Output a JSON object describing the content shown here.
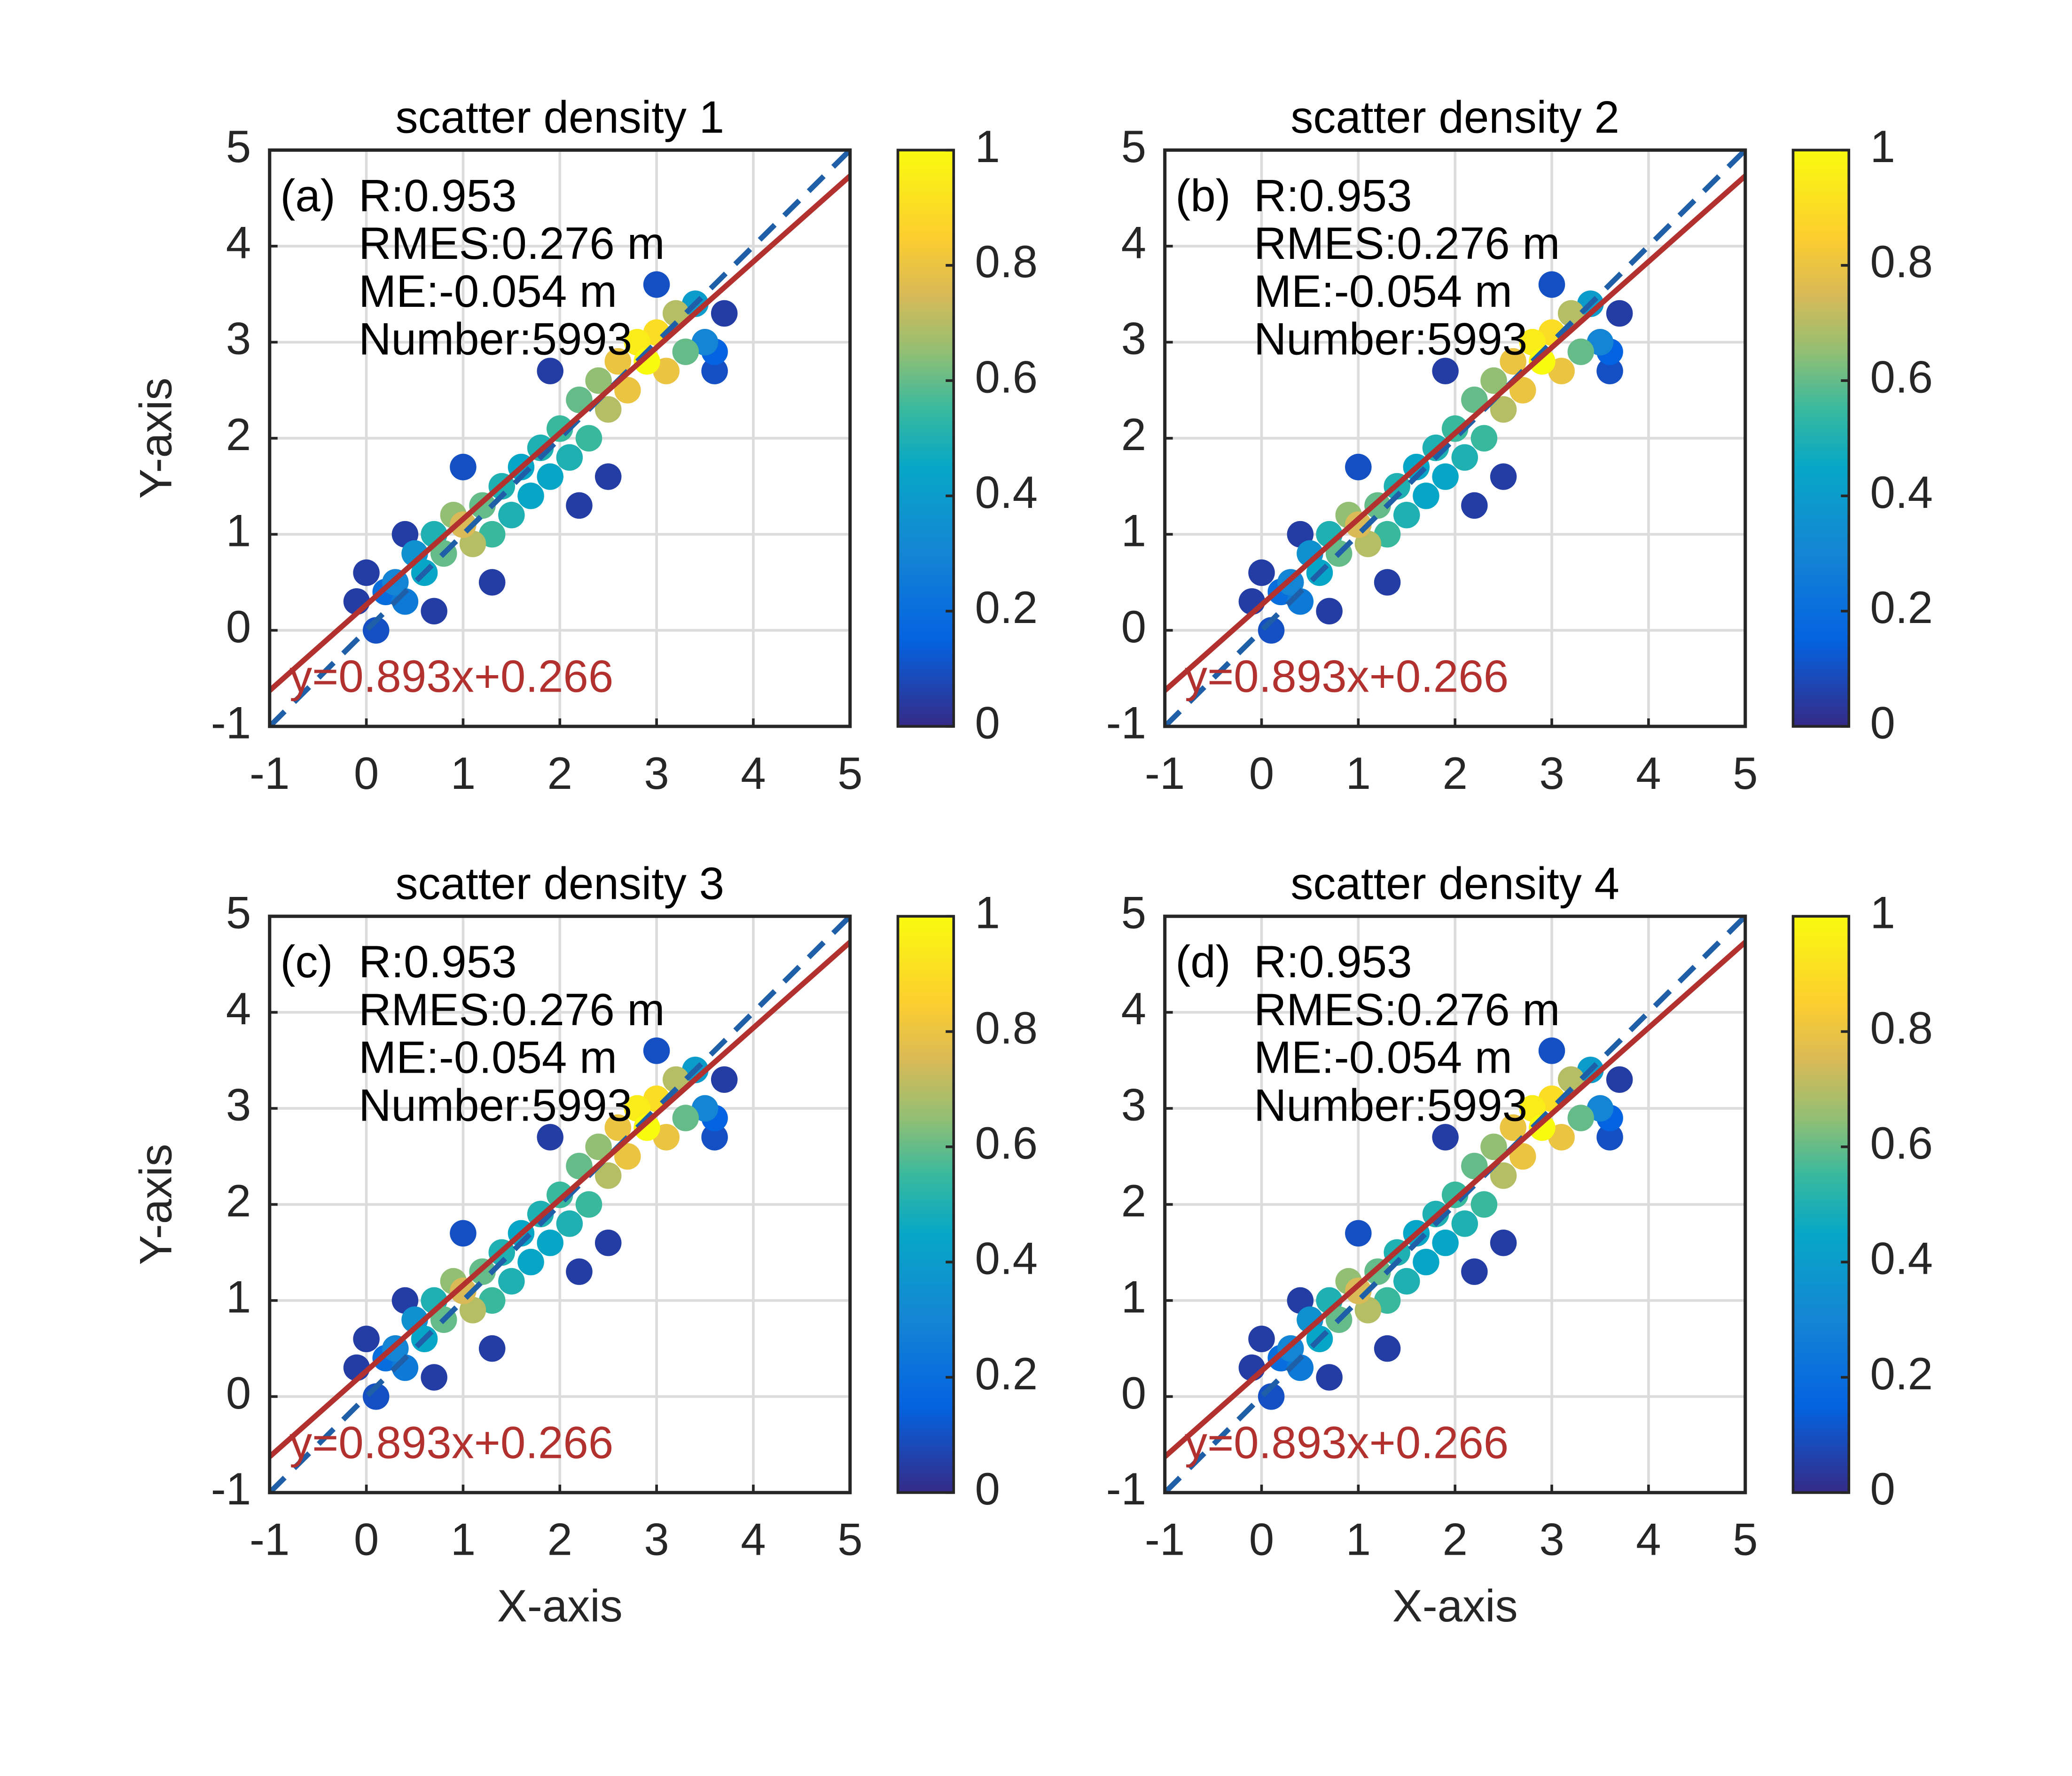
{
  "chart_data": [
    {
      "type": "scatter",
      "title": "scatter density 1",
      "ylabel": "Y-axis",
      "panel_label": "(a)",
      "stats": [
        "R:0.953",
        "RMES:0.276 m",
        "ME:-0.054 m",
        "Number:5993"
      ],
      "fit": {
        "label": "y=0.893x+0.266",
        "slope": 0.893,
        "intercept": 0.266,
        "color": "#b2312e"
      },
      "reference_line": {
        "slope": 1,
        "intercept": 0,
        "color": "#1f5fa8",
        "dashed": true
      },
      "xlim": [
        -1,
        5
      ],
      "ylim": [
        -1,
        5
      ],
      "xticks": [
        -1,
        0,
        1,
        2,
        3,
        4,
        5
      ],
      "yticks": [
        -1,
        0,
        1,
        2,
        3,
        4,
        5
      ],
      "grid": true,
      "colormap": "parula",
      "clim": [
        0,
        1
      ],
      "cticks": [
        0,
        0.2,
        0.4,
        0.6,
        0.8,
        1
      ],
      "series": [
        {
          "x": [
            2.5,
            1.3,
            0.7,
            1.9,
            0.4,
            2.2,
            3.7,
            -0.1,
            0.0,
            3.6,
            0.1,
            1.0,
            3.0,
            3.6,
            0.2,
            0.4,
            3.5,
            0.3,
            0.5,
            3.4,
            0.6,
            1.6,
            1.7,
            1.9,
            1.4,
            1.5,
            0.7,
            2.1,
            1.3,
            1.8,
            2.0,
            0.8,
            1.2,
            3.3,
            2.2,
            2.3,
            0.9,
            2.4,
            1.1,
            3.2,
            2.5,
            1.0,
            2.6,
            2.7,
            3.1,
            3.0,
            2.8,
            2.9
          ],
          "y": [
            1.6,
            0.5,
            0.2,
            2.7,
            1.0,
            1.3,
            3.3,
            0.3,
            0.6,
            2.7,
            0.0,
            1.7,
            3.6,
            2.9,
            0.4,
            0.3,
            3.0,
            0.5,
            0.8,
            3.4,
            0.6,
            1.7,
            1.4,
            1.6,
            1.5,
            1.2,
            1.0,
            1.8,
            1.0,
            1.9,
            2.1,
            0.8,
            1.3,
            2.9,
            2.4,
            2.0,
            1.2,
            2.6,
            0.9,
            3.3,
            2.3,
            1.1,
            2.8,
            2.5,
            2.7,
            3.1,
            3.0,
            2.8
          ],
          "values": [
            0.05,
            0.05,
            0.05,
            0.05,
            0.05,
            0.05,
            0.05,
            0.05,
            0.05,
            0.1,
            0.1,
            0.1,
            0.1,
            0.15,
            0.2,
            0.25,
            0.3,
            0.3,
            0.35,
            0.4,
            0.45,
            0.45,
            0.45,
            0.45,
            0.5,
            0.5,
            0.5,
            0.5,
            0.55,
            0.5,
            0.55,
            0.6,
            0.6,
            0.6,
            0.6,
            0.55,
            0.65,
            0.65,
            0.7,
            0.7,
            0.7,
            0.75,
            0.8,
            0.8,
            0.8,
            0.9,
            0.95,
            1.0
          ]
        }
      ]
    },
    {
      "type": "scatter",
      "title": "scatter density 2",
      "panel_label": "(b)",
      "stats": [
        "R:0.953",
        "RMES:0.276 m",
        "ME:-0.054 m",
        "Number:5993"
      ],
      "fit": {
        "label": "y=0.893x+0.266",
        "slope": 0.893,
        "intercept": 0.266,
        "color": "#b2312e"
      },
      "reference_line": {
        "slope": 1,
        "intercept": 0,
        "color": "#1f5fa8",
        "dashed": true
      },
      "xlim": [
        -1,
        5
      ],
      "ylim": [
        -1,
        5
      ],
      "xticks": [
        -1,
        0,
        1,
        2,
        3,
        4,
        5
      ],
      "yticks": [
        -1,
        0,
        1,
        2,
        3,
        4,
        5
      ],
      "grid": true,
      "colormap": "parula",
      "clim": [
        0,
        1
      ],
      "cticks": [
        0,
        0.2,
        0.4,
        0.6,
        0.8,
        1
      ],
      "series": [
        {
          "x": [
            2.5,
            1.3,
            0.7,
            1.9,
            0.4,
            2.2,
            3.7,
            -0.1,
            0.0,
            3.6,
            0.1,
            1.0,
            3.0,
            3.6,
            0.2,
            0.4,
            3.5,
            0.3,
            0.5,
            3.4,
            0.6,
            1.6,
            1.7,
            1.9,
            1.4,
            1.5,
            0.7,
            2.1,
            1.3,
            1.8,
            2.0,
            0.8,
            1.2,
            3.3,
            2.2,
            2.3,
            0.9,
            2.4,
            1.1,
            3.2,
            2.5,
            1.0,
            2.6,
            2.7,
            3.1,
            3.0,
            2.8,
            2.9
          ],
          "y": [
            1.6,
            0.5,
            0.2,
            2.7,
            1.0,
            1.3,
            3.3,
            0.3,
            0.6,
            2.7,
            0.0,
            1.7,
            3.6,
            2.9,
            0.4,
            0.3,
            3.0,
            0.5,
            0.8,
            3.4,
            0.6,
            1.7,
            1.4,
            1.6,
            1.5,
            1.2,
            1.0,
            1.8,
            1.0,
            1.9,
            2.1,
            0.8,
            1.3,
            2.9,
            2.4,
            2.0,
            1.2,
            2.6,
            0.9,
            3.3,
            2.3,
            1.1,
            2.8,
            2.5,
            2.7,
            3.1,
            3.0,
            2.8
          ],
          "values": [
            0.05,
            0.05,
            0.05,
            0.05,
            0.05,
            0.05,
            0.05,
            0.05,
            0.05,
            0.1,
            0.1,
            0.1,
            0.1,
            0.15,
            0.2,
            0.25,
            0.3,
            0.3,
            0.35,
            0.4,
            0.45,
            0.45,
            0.45,
            0.45,
            0.5,
            0.5,
            0.5,
            0.5,
            0.55,
            0.5,
            0.55,
            0.6,
            0.6,
            0.6,
            0.6,
            0.55,
            0.65,
            0.65,
            0.7,
            0.7,
            0.7,
            0.75,
            0.8,
            0.8,
            0.8,
            0.9,
            0.95,
            1.0
          ]
        }
      ]
    },
    {
      "type": "scatter",
      "title": "scatter density 3",
      "xlabel": "X-axis",
      "ylabel": "Y-axis",
      "panel_label": "(c)",
      "stats": [
        "R:0.953",
        "RMES:0.276 m",
        "ME:-0.054 m",
        "Number:5993"
      ],
      "fit": {
        "label": "y=0.893x+0.266",
        "slope": 0.893,
        "intercept": 0.266,
        "color": "#b2312e"
      },
      "reference_line": {
        "slope": 1,
        "intercept": 0,
        "color": "#1f5fa8",
        "dashed": true
      },
      "xlim": [
        -1,
        5
      ],
      "ylim": [
        -1,
        5
      ],
      "xticks": [
        -1,
        0,
        1,
        2,
        3,
        4,
        5
      ],
      "yticks": [
        -1,
        0,
        1,
        2,
        3,
        4,
        5
      ],
      "grid": true,
      "colormap": "parula",
      "clim": [
        0,
        1
      ],
      "cticks": [
        0,
        0.2,
        0.4,
        0.6,
        0.8,
        1
      ],
      "series": [
        {
          "x": [
            2.5,
            1.3,
            0.7,
            1.9,
            0.4,
            2.2,
            3.7,
            -0.1,
            0.0,
            3.6,
            0.1,
            1.0,
            3.0,
            3.6,
            0.2,
            0.4,
            3.5,
            0.3,
            0.5,
            3.4,
            0.6,
            1.6,
            1.7,
            1.9,
            1.4,
            1.5,
            0.7,
            2.1,
            1.3,
            1.8,
            2.0,
            0.8,
            1.2,
            3.3,
            2.2,
            2.3,
            0.9,
            2.4,
            1.1,
            3.2,
            2.5,
            1.0,
            2.6,
            2.7,
            3.1,
            3.0,
            2.8,
            2.9
          ],
          "y": [
            1.6,
            0.5,
            0.2,
            2.7,
            1.0,
            1.3,
            3.3,
            0.3,
            0.6,
            2.7,
            0.0,
            1.7,
            3.6,
            2.9,
            0.4,
            0.3,
            3.0,
            0.5,
            0.8,
            3.4,
            0.6,
            1.7,
            1.4,
            1.6,
            1.5,
            1.2,
            1.0,
            1.8,
            1.0,
            1.9,
            2.1,
            0.8,
            1.3,
            2.9,
            2.4,
            2.0,
            1.2,
            2.6,
            0.9,
            3.3,
            2.3,
            1.1,
            2.8,
            2.5,
            2.7,
            3.1,
            3.0,
            2.8
          ],
          "values": [
            0.05,
            0.05,
            0.05,
            0.05,
            0.05,
            0.05,
            0.05,
            0.05,
            0.05,
            0.1,
            0.1,
            0.1,
            0.1,
            0.15,
            0.2,
            0.25,
            0.3,
            0.3,
            0.35,
            0.4,
            0.45,
            0.45,
            0.45,
            0.45,
            0.5,
            0.5,
            0.5,
            0.5,
            0.55,
            0.5,
            0.55,
            0.6,
            0.6,
            0.6,
            0.6,
            0.55,
            0.65,
            0.65,
            0.7,
            0.7,
            0.7,
            0.75,
            0.8,
            0.8,
            0.8,
            0.9,
            0.95,
            1.0
          ]
        }
      ]
    },
    {
      "type": "scatter",
      "title": "scatter density 4",
      "xlabel": "X-axis",
      "panel_label": "(d)",
      "stats": [
        "R:0.953",
        "RMES:0.276 m",
        "ME:-0.054 m",
        "Number:5993"
      ],
      "fit": {
        "label": "y=0.893x+0.266",
        "slope": 0.893,
        "intercept": 0.266,
        "color": "#b2312e"
      },
      "reference_line": {
        "slope": 1,
        "intercept": 0,
        "color": "#1f5fa8",
        "dashed": true
      },
      "xlim": [
        -1,
        5
      ],
      "ylim": [
        -1,
        5
      ],
      "xticks": [
        -1,
        0,
        1,
        2,
        3,
        4,
        5
      ],
      "yticks": [
        -1,
        0,
        1,
        2,
        3,
        4,
        5
      ],
      "grid": true,
      "colormap": "parula",
      "clim": [
        0,
        1
      ],
      "cticks": [
        0,
        0.2,
        0.4,
        0.6,
        0.8,
        1
      ],
      "series": [
        {
          "x": [
            2.5,
            1.3,
            0.7,
            1.9,
            0.4,
            2.2,
            3.7,
            -0.1,
            0.0,
            3.6,
            0.1,
            1.0,
            3.0,
            3.6,
            0.2,
            0.4,
            3.5,
            0.3,
            0.5,
            3.4,
            0.6,
            1.6,
            1.7,
            1.9,
            1.4,
            1.5,
            0.7,
            2.1,
            1.3,
            1.8,
            2.0,
            0.8,
            1.2,
            3.3,
            2.2,
            2.3,
            0.9,
            2.4,
            1.1,
            3.2,
            2.5,
            1.0,
            2.6,
            2.7,
            3.1,
            3.0,
            2.8,
            2.9
          ],
          "y": [
            1.6,
            0.5,
            0.2,
            2.7,
            1.0,
            1.3,
            3.3,
            0.3,
            0.6,
            2.7,
            0.0,
            1.7,
            3.6,
            2.9,
            0.4,
            0.3,
            3.0,
            0.5,
            0.8,
            3.4,
            0.6,
            1.7,
            1.4,
            1.6,
            1.5,
            1.2,
            1.0,
            1.8,
            1.0,
            1.9,
            2.1,
            0.8,
            1.3,
            2.9,
            2.4,
            2.0,
            1.2,
            2.6,
            0.9,
            3.3,
            2.3,
            1.1,
            2.8,
            2.5,
            2.7,
            3.1,
            3.0,
            2.8
          ],
          "values": [
            0.05,
            0.05,
            0.05,
            0.05,
            0.05,
            0.05,
            0.05,
            0.05,
            0.05,
            0.1,
            0.1,
            0.1,
            0.1,
            0.15,
            0.2,
            0.25,
            0.3,
            0.3,
            0.35,
            0.4,
            0.45,
            0.45,
            0.45,
            0.45,
            0.5,
            0.5,
            0.5,
            0.5,
            0.55,
            0.5,
            0.55,
            0.6,
            0.6,
            0.6,
            0.6,
            0.55,
            0.65,
            0.65,
            0.7,
            0.7,
            0.7,
            0.75,
            0.8,
            0.8,
            0.8,
            0.9,
            0.95,
            1.0
          ]
        }
      ]
    }
  ]
}
